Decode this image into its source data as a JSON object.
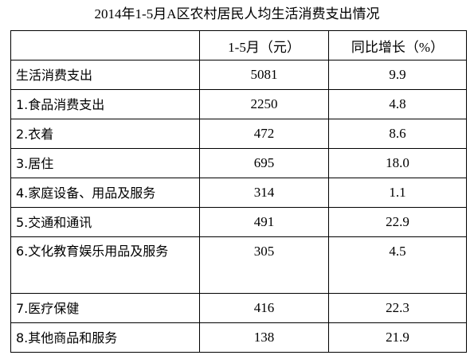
{
  "title": "2014年1-5月A区农村居民人均生活消费支出情况",
  "table": {
    "header": [
      "1-5月（元）",
      "同比增长（%）"
    ],
    "rows": [
      [
        "生活消费支出",
        "5081",
        "9.9"
      ],
      [
        "1.食品消费支出",
        "2250",
        "4.8"
      ],
      [
        "2.衣着",
        "472",
        "8.6"
      ],
      [
        "3.居住",
        "695",
        "18.0"
      ],
      [
        "4.家庭设备、用品及服务",
        "314",
        "1.1"
      ],
      [
        "5.交通和通讯",
        "491",
        "22.9"
      ],
      [
        "6.文化教育娱乐用品及服务",
        "305",
        "4.5"
      ],
      [
        "7.医疗保健",
        "416",
        "22.3"
      ],
      [
        "8.其他商品和服务",
        "138",
        "21.9"
      ]
    ]
  }
}
